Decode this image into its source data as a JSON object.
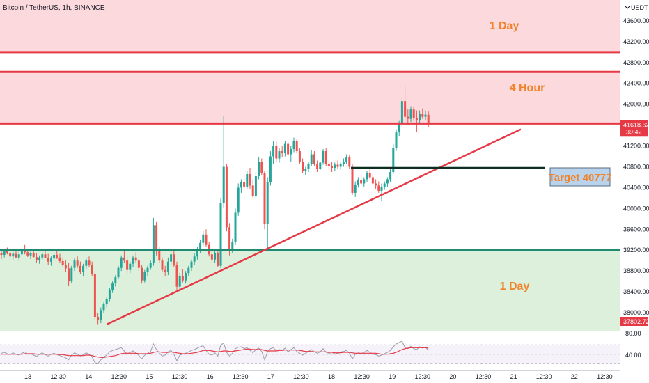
{
  "header": {
    "title": "Bitcoin / TetherUS, 1h, BINANCE",
    "currency": "USDT"
  },
  "colors": {
    "up": "#26a69a",
    "down": "#ef5350",
    "resistance_zone": "#fcd9dc",
    "support_zone": "#dcf0dc",
    "level_red": "#e53946",
    "level_green": "#1f8a70",
    "trendline": "#e53946",
    "target_line": "#0f2e22",
    "annotation": "#f0832a",
    "rsi_line": "#9c9ca8",
    "rsi_ma": "#e53946",
    "price_badge": "#e53946"
  },
  "annotations": {
    "zone_top": "1 Day",
    "zone_mid": "4 Hour",
    "zone_bottom": "1 Day",
    "target": "Target 40777"
  },
  "price_axis": {
    "ticks": [
      "43600.00",
      "43200.00",
      "42800.00",
      "42400.00",
      "42000.00",
      "41200.00",
      "40800.00",
      "40400.00",
      "40000.00",
      "39600.00",
      "39200.00",
      "38800.00",
      "38400.00",
      "38000.00"
    ],
    "current_price": "41618.62",
    "countdown": "39:42",
    "low_badge": "37802.72"
  },
  "rsi_axis": {
    "ticks": [
      "80.00",
      "40.00"
    ]
  },
  "time_axis": {
    "ticks": [
      "13",
      "12:30",
      "14",
      "12:30",
      "15",
      "12:30",
      "16",
      "12:30",
      "17",
      "12:30",
      "18",
      "12:30",
      "19",
      "12:30",
      "20",
      "12:30",
      "21",
      "12:30",
      "22",
      "12:30"
    ]
  },
  "chart_data": {
    "type": "candlestick",
    "title": "Bitcoin / TetherUS, 1h, BINANCE",
    "ylim": [
      37640,
      44000
    ],
    "ylabel": "USDT",
    "grid": false,
    "zones": [
      {
        "label": "1 Day",
        "from": 43000,
        "to": 44000
      },
      {
        "label": "4 Hour",
        "from": 41620,
        "to": 42620
      },
      {
        "label": "1 Day",
        "from": 37640,
        "to": 39200
      }
    ],
    "levels": [
      {
        "value": 43000
      },
      {
        "value": 42620
      },
      {
        "value": 41630
      },
      {
        "value": 39200
      }
    ],
    "target": {
      "label": "Target 40777",
      "value": 40777,
      "x_from": 118,
      "x_to": 208
    },
    "trendline": {
      "from": {
        "x": 0,
        "y": 37780
      },
      "to": {
        "x": 145,
        "y": 41520
      }
    },
    "time_labels": [
      "13",
      "12:30",
      "14",
      "12:30",
      "15",
      "12:30",
      "16",
      "12:30",
      "17",
      "12:30",
      "18",
      "12:30",
      "19",
      "12:30",
      "20",
      "12:30",
      "21",
      "12:30",
      "22",
      "12:30"
    ],
    "candles": [
      [
        39140,
        39200,
        39030,
        39110
      ],
      [
        39110,
        39230,
        39060,
        39180
      ],
      [
        39180,
        39250,
        39120,
        39150
      ],
      [
        39150,
        39210,
        39060,
        39080
      ],
      [
        39080,
        39170,
        39020,
        39130
      ],
      [
        39130,
        39200,
        39050,
        39060
      ],
      [
        39060,
        39180,
        39000,
        39120
      ],
      [
        39120,
        39240,
        39080,
        39190
      ],
      [
        39190,
        39300,
        39120,
        39160
      ],
      [
        39160,
        39220,
        39070,
        39100
      ],
      [
        39100,
        39170,
        39030,
        39140
      ],
      [
        39140,
        39200,
        39060,
        39070
      ],
      [
        39070,
        39140,
        38960,
        39010
      ],
      [
        39010,
        39100,
        38940,
        39060
      ],
      [
        39060,
        39160,
        39020,
        39120
      ],
      [
        39120,
        39200,
        39040,
        39050
      ],
      [
        39050,
        39130,
        38920,
        38980
      ],
      [
        38980,
        39080,
        38900,
        39040
      ],
      [
        39040,
        39140,
        38990,
        39110
      ],
      [
        39110,
        39190,
        39030,
        39060
      ],
      [
        39060,
        39130,
        38950,
        38990
      ],
      [
        38990,
        39060,
        38880,
        38920
      ],
      [
        38920,
        39000,
        38780,
        38850
      ],
      [
        38850,
        38950,
        38520,
        38600
      ],
      [
        38600,
        38900,
        38560,
        38860
      ],
      [
        38860,
        39050,
        38800,
        39000
      ],
      [
        39000,
        39080,
        38860,
        38900
      ],
      [
        38900,
        38980,
        38740,
        38780
      ],
      [
        38780,
        38940,
        38700,
        38900
      ],
      [
        38900,
        39040,
        38840,
        39000
      ],
      [
        39000,
        39080,
        38880,
        38920
      ],
      [
        38920,
        38980,
        38700,
        38740
      ],
      [
        38740,
        38800,
        37840,
        37920
      ],
      [
        37920,
        38000,
        37780,
        37860
      ],
      [
        37860,
        38100,
        37800,
        38050
      ],
      [
        38050,
        38200,
        38000,
        38160
      ],
      [
        38160,
        38300,
        38100,
        38260
      ],
      [
        38260,
        38480,
        38220,
        38440
      ],
      [
        38440,
        38600,
        38380,
        38560
      ],
      [
        38560,
        38720,
        38500,
        38680
      ],
      [
        38680,
        38900,
        38640,
        38860
      ],
      [
        38860,
        39100,
        38800,
        39060
      ],
      [
        39060,
        39220,
        38960,
        39000
      ],
      [
        39000,
        39080,
        38760,
        38820
      ],
      [
        38820,
        38980,
        38760,
        38940
      ],
      [
        38940,
        39100,
        38880,
        39060
      ],
      [
        39060,
        39160,
        38960,
        39000
      ],
      [
        39000,
        39040,
        38800,
        38860
      ],
      [
        38860,
        38920,
        38560,
        38620
      ],
      [
        38620,
        38820,
        38580,
        38780
      ],
      [
        38780,
        38900,
        38700,
        38860
      ],
      [
        38860,
        39000,
        38820,
        38960
      ],
      [
        38960,
        39820,
        38900,
        39680
      ],
      [
        39680,
        39740,
        39100,
        39180
      ],
      [
        39180,
        39260,
        38960,
        39000
      ],
      [
        39000,
        39060,
        38780,
        38820
      ],
      [
        38820,
        38900,
        38700,
        38780
      ],
      [
        38780,
        39060,
        38720,
        38980
      ],
      [
        38980,
        39200,
        38900,
        39120
      ],
      [
        39120,
        39180,
        38880,
        38920
      ],
      [
        38920,
        38980,
        38400,
        38500
      ],
      [
        38500,
        38760,
        38440,
        38700
      ],
      [
        38700,
        38840,
        38580,
        38620
      ],
      [
        38620,
        38800,
        38560,
        38760
      ],
      [
        38760,
        38900,
        38700,
        38860
      ],
      [
        38860,
        39020,
        38800,
        38980
      ],
      [
        38980,
        39140,
        38920,
        39080
      ],
      [
        39080,
        39260,
        39020,
        39200
      ],
      [
        39200,
        39400,
        39140,
        39340
      ],
      [
        39340,
        39560,
        39280,
        39500
      ],
      [
        39500,
        39600,
        39260,
        39300
      ],
      [
        39300,
        39360,
        39080,
        39120
      ],
      [
        39120,
        39200,
        38980,
        39020
      ],
      [
        39020,
        39180,
        38960,
        39140
      ],
      [
        39140,
        39200,
        38880,
        38900
      ],
      [
        38900,
        40200,
        38860,
        40100
      ],
      [
        40100,
        41780,
        40020,
        40800
      ],
      [
        40800,
        40860,
        39560,
        39640
      ],
      [
        39640,
        39720,
        39100,
        39180
      ],
      [
        39180,
        39420,
        39140,
        39360
      ],
      [
        39360,
        40000,
        39300,
        39920
      ],
      [
        39920,
        40480,
        39860,
        40400
      ],
      [
        40400,
        40560,
        40300,
        40500
      ],
      [
        40500,
        40640,
        40360,
        40420
      ],
      [
        40420,
        40720,
        40380,
        40660
      ],
      [
        40660,
        40780,
        40380,
        40440
      ],
      [
        40440,
        40560,
        40200,
        40240
      ],
      [
        40240,
        40700,
        40180,
        40620
      ],
      [
        40620,
        40980,
        40560,
        40900
      ],
      [
        40900,
        40960,
        40640,
        40680
      ],
      [
        40680,
        40720,
        39600,
        39700
      ],
      [
        39700,
        40600,
        39200,
        40500
      ],
      [
        40500,
        41100,
        40440,
        41000
      ],
      [
        41000,
        41300,
        40860,
        41200
      ],
      [
        41200,
        41280,
        40900,
        40960
      ],
      [
        40960,
        41160,
        40880,
        41100
      ],
      [
        41100,
        41200,
        40980,
        41060
      ],
      [
        41060,
        41300,
        41000,
        41240
      ],
      [
        41240,
        41280,
        41000,
        41040
      ],
      [
        41040,
        41200,
        40900,
        41140
      ],
      [
        41140,
        41360,
        41080,
        41300
      ],
      [
        41300,
        41340,
        41060,
        41100
      ],
      [
        41100,
        41160,
        40860,
        40900
      ],
      [
        40900,
        40960,
        40680,
        40720
      ],
      [
        40720,
        40800,
        40640,
        40760
      ],
      [
        40760,
        40900,
        40700,
        40860
      ],
      [
        40860,
        41120,
        40820,
        41040
      ],
      [
        41040,
        41100,
        40820,
        40860
      ],
      [
        40860,
        40920,
        40700,
        40760
      ],
      [
        40760,
        40900,
        40740,
        40880
      ],
      [
        40880,
        41140,
        40840,
        41100
      ],
      [
        41100,
        41160,
        40820,
        40860
      ],
      [
        40860,
        40920,
        40740,
        40820
      ],
      [
        40820,
        40900,
        40700,
        40780
      ],
      [
        40780,
        40880,
        40720,
        40840
      ],
      [
        40840,
        40920,
        40760,
        40800
      ],
      [
        40800,
        40900,
        40740,
        40860
      ],
      [
        40860,
        40960,
        40800,
        40900
      ],
      [
        40900,
        41040,
        40860,
        40980
      ],
      [
        40980,
        41020,
        40760,
        40800
      ],
      [
        40800,
        40860,
        40260,
        40300
      ],
      [
        40300,
        40520,
        40220,
        40460
      ],
      [
        40460,
        40600,
        40400,
        40540
      ],
      [
        40540,
        40640,
        40440,
        40480
      ],
      [
        40480,
        40600,
        40420,
        40560
      ],
      [
        40560,
        40720,
        40500,
        40680
      ],
      [
        40680,
        40800,
        40560,
        40600
      ],
      [
        40600,
        40660,
        40440,
        40480
      ],
      [
        40480,
        40560,
        40380,
        40440
      ],
      [
        40440,
        40520,
        40300,
        40340
      ],
      [
        40340,
        40480,
        40140,
        40420
      ],
      [
        40420,
        40520,
        40360,
        40480
      ],
      [
        40480,
        40600,
        40420,
        40560
      ],
      [
        40560,
        40760,
        40500,
        40700
      ],
      [
        40700,
        41240,
        40660,
        41160
      ],
      [
        41160,
        41520,
        41100,
        41460
      ],
      [
        41460,
        41680,
        41380,
        41620
      ],
      [
        41620,
        42120,
        41560,
        42060
      ],
      [
        42060,
        42340,
        41700,
        41760
      ],
      [
        41760,
        41900,
        41600,
        41720
      ],
      [
        41720,
        41960,
        41660,
        41900
      ],
      [
        41900,
        41960,
        41680,
        41740
      ],
      [
        41740,
        41880,
        41460,
        41700
      ],
      [
        41700,
        41880,
        41640,
        41820
      ],
      [
        41820,
        41920,
        41720,
        41760
      ],
      [
        41760,
        41880,
        41700,
        41800
      ],
      [
        41800,
        41860,
        41560,
        41618
      ]
    ],
    "rsi": {
      "ylim": [
        30,
        90
      ],
      "upper_band": 70,
      "mid_band": 50,
      "lower_band": 30,
      "values": [
        52,
        54,
        51,
        49,
        53,
        50,
        48,
        52,
        55,
        50,
        51,
        48,
        45,
        50,
        53,
        49,
        46,
        50,
        52,
        49,
        47,
        45,
        42,
        38,
        48,
        53,
        50,
        46,
        49,
        53,
        50,
        44,
        32,
        30,
        38,
        44,
        48,
        55,
        58,
        60,
        62,
        64,
        57,
        50,
        54,
        57,
        53,
        47,
        40,
        48,
        52,
        56,
        72,
        60,
        52,
        46,
        48,
        55,
        58,
        50,
        36,
        48,
        50,
        52,
        55,
        58,
        60,
        63,
        66,
        68,
        58,
        50,
        48,
        53,
        46,
        70,
        74,
        54,
        46,
        52,
        62,
        65,
        66,
        62,
        64,
        58,
        53,
        60,
        63,
        56,
        38,
        55,
        62,
        64,
        57,
        60,
        58,
        63,
        55,
        60,
        64,
        56,
        52,
        48,
        52,
        56,
        60,
        55,
        52,
        55,
        62,
        54,
        52,
        50,
        53,
        51,
        55,
        56,
        58,
        52,
        40,
        50,
        53,
        51,
        54,
        58,
        54,
        50,
        49,
        46,
        48,
        51,
        54,
        58,
        66,
        72,
        75,
        78,
        64,
        62,
        67,
        62,
        60,
        66,
        63,
        65,
        58
      ],
      "ma": [
        50,
        50,
        50,
        50,
        50,
        50,
        50,
        50,
        51,
        51,
        51,
        51,
        50,
        50,
        50,
        50,
        50,
        50,
        50,
        50,
        49,
        49,
        48,
        47,
        47,
        47,
        47,
        47,
        47,
        48,
        48,
        47,
        45,
        44,
        43,
        43,
        44,
        45,
        46,
        47,
        49,
        51,
        52,
        52,
        52,
        52,
        52,
        51,
        51,
        51,
        51,
        52,
        54,
        55,
        55,
        54,
        54,
        54,
        55,
        54,
        53,
        52,
        51,
        51,
        51,
        52,
        53,
        54,
        56,
        58,
        58,
        58,
        57,
        56,
        55,
        56,
        57,
        57,
        56,
        56,
        57,
        58,
        59,
        60,
        61,
        61,
        60,
        60,
        60,
        60,
        58,
        57,
        57,
        57,
        57,
        58,
        58,
        59,
        59,
        59,
        59,
        59,
        58,
        57,
        56,
        56,
        56,
        55,
        55,
        55,
        55,
        55,
        54,
        54,
        53,
        53,
        53,
        54,
        54,
        54,
        53,
        52,
        52,
        52,
        52,
        52,
        52,
        52,
        52,
        51,
        50,
        50,
        50,
        51,
        52,
        54,
        57,
        60,
        62,
        63,
        64,
        64,
        64,
        64,
        64,
        64,
        63
      ]
    }
  }
}
